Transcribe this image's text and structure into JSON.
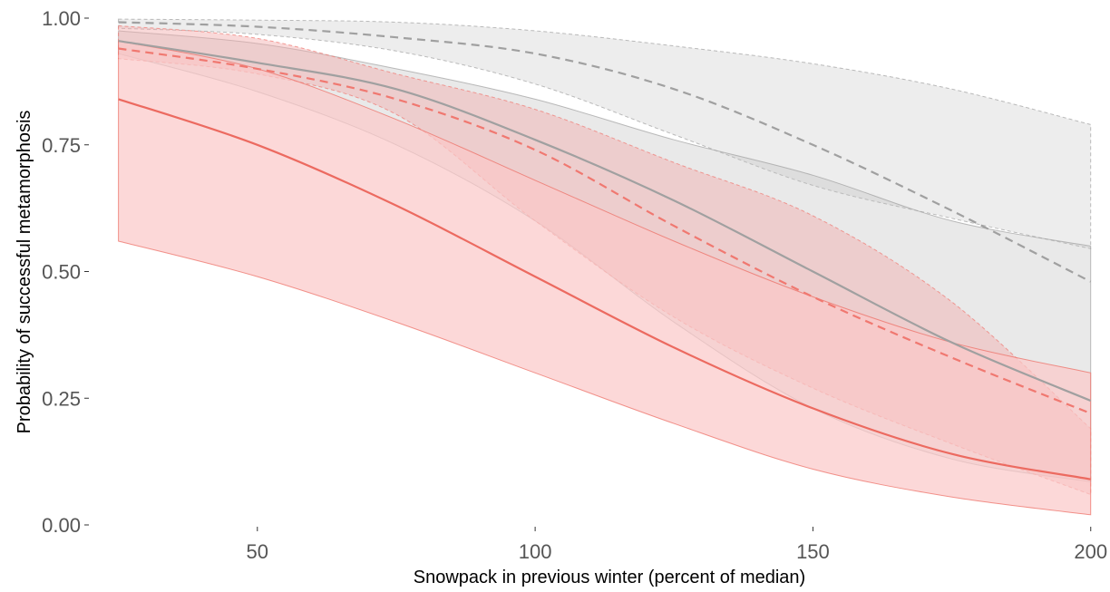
{
  "chart_data": {
    "type": "line",
    "title": "",
    "xlabel": "Snowpack in previous winter (percent of median)",
    "ylabel": "Probability of successful metamorphosis",
    "xlim": [
      20,
      202
    ],
    "ylim": [
      0,
      1
    ],
    "x_ticks": [
      50,
      100,
      150,
      200
    ],
    "x_tick_labels": [
      "50",
      "100",
      "150",
      "200"
    ],
    "y_ticks": [
      0,
      0.25,
      0.5,
      0.75,
      1
    ],
    "y_tick_labels": [
      "0.00",
      "0.25",
      "0.50",
      "0.75",
      "1.00"
    ],
    "grid": false,
    "legend": "none",
    "x": [
      25,
      50,
      75,
      100,
      125,
      150,
      175,
      200
    ],
    "series": [
      {
        "color": "#a0a0a0",
        "line_style": "dashed",
        "band_fill": "#e8e8e8",
        "band_alpha": 0.8,
        "estimate": [
          0.992,
          0.983,
          0.962,
          0.93,
          0.86,
          0.75,
          0.62,
          0.48
        ],
        "lower": [
          0.98,
          0.968,
          0.935,
          0.87,
          0.77,
          0.67,
          0.605,
          0.545
        ],
        "upper": [
          0.998,
          0.996,
          0.992,
          0.975,
          0.945,
          0.91,
          0.86,
          0.79
        ]
      },
      {
        "color": "#a0a0a0",
        "line_style": "solid",
        "band_fill": "#bfbfbf",
        "band_alpha": 0.35,
        "estimate": [
          0.955,
          0.912,
          0.86,
          0.76,
          0.64,
          0.5,
          0.36,
          0.245
        ],
        "lower": [
          0.93,
          0.855,
          0.75,
          0.6,
          0.4,
          0.23,
          0.13,
          0.085
        ],
        "upper": [
          0.975,
          0.95,
          0.9,
          0.84,
          0.76,
          0.69,
          0.6,
          0.55
        ]
      },
      {
        "color": "#f07870",
        "line_style": "dashed",
        "band_fill": "#f2aaaa",
        "band_alpha": 0.45,
        "estimate": [
          0.94,
          0.9,
          0.84,
          0.74,
          0.59,
          0.45,
          0.33,
          0.22
        ],
        "lower": [
          0.92,
          0.89,
          0.81,
          0.6,
          0.41,
          0.27,
          0.16,
          0.06
        ],
        "upper": [
          0.985,
          0.96,
          0.89,
          0.82,
          0.715,
          0.61,
          0.44,
          0.19
        ]
      },
      {
        "color": "#ec6a60",
        "line_style": "solid",
        "band_fill": "#fbc8c8",
        "band_alpha": 0.7,
        "estimate": [
          0.84,
          0.75,
          0.63,
          0.49,
          0.35,
          0.23,
          0.14,
          0.09
        ],
        "lower": [
          0.56,
          0.49,
          0.4,
          0.3,
          0.2,
          0.11,
          0.055,
          0.02
        ],
        "upper": [
          0.955,
          0.9,
          0.8,
          0.68,
          0.56,
          0.45,
          0.36,
          0.3
        ]
      }
    ]
  }
}
